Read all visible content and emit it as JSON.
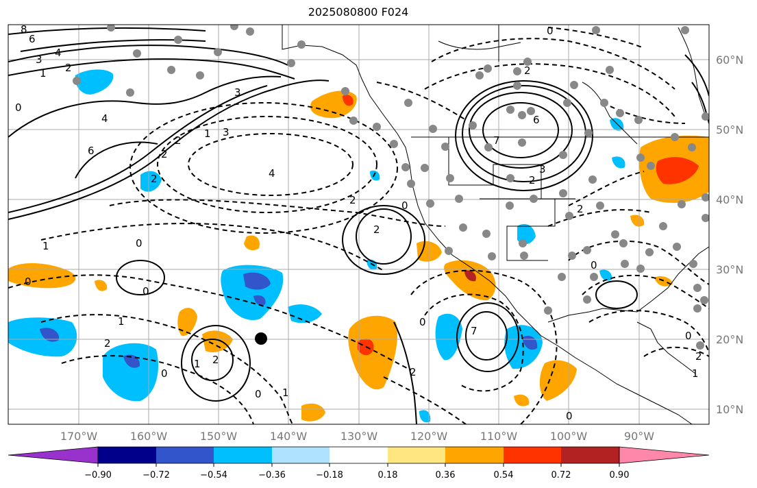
{
  "title": "2025080800 F024",
  "map": {
    "lat_labels": [
      "60°N",
      "50°N",
      "40°N",
      "30°N",
      "20°N",
      "10°N"
    ],
    "lon_labels": [
      "170°W",
      "160°W",
      "150°W",
      "140°W",
      "130°W",
      "120°W",
      "110°W",
      "100°W",
      "90°W"
    ],
    "contour_labels": [
      "8",
      "6",
      "3",
      "4",
      "2",
      "1",
      "0",
      "4",
      "6",
      "3",
      "2",
      "1",
      "3",
      "2",
      "2",
      "4",
      "2",
      "0",
      "6",
      "7",
      "3",
      "2",
      "0",
      "2",
      "1",
      "0",
      "0",
      "1",
      "2",
      "0",
      "1",
      "2",
      "0",
      "0",
      "1",
      "2",
      "0",
      "2",
      "7",
      "0",
      "0",
      "2",
      "1",
      "2",
      "0"
    ],
    "colors": {
      "positive": "#ffa500",
      "strong_positive": "#ff3300",
      "negative": "#00bfff",
      "strong_negative": "#3355cc",
      "station": "#888888",
      "grid": "#aaaaaa"
    }
  },
  "colorbar": {
    "tick_labels": [
      "−0.90",
      "−0.72",
      "−0.54",
      "−0.36",
      "−0.18",
      "0.18",
      "0.36",
      "0.54",
      "0.72",
      "0.90"
    ],
    "colors": [
      "#9932cc",
      "#00008b",
      "#3355cc",
      "#00bfff",
      "#aee2ff",
      "#ffffff",
      "#ffe680",
      "#ffa500",
      "#ff3300",
      "#b22222",
      "#ff88aa"
    ]
  }
}
